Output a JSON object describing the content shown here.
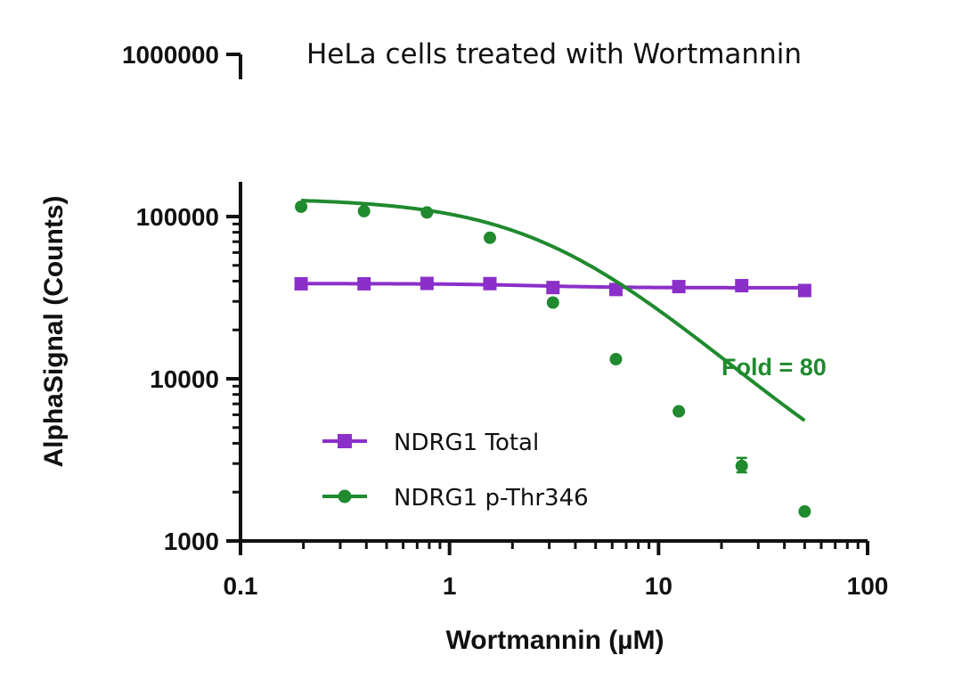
{
  "chart_data": {
    "type": "scatter",
    "title": "HeLa cells treated with Wortmannin",
    "xlabel": "Wortmannin (µM)",
    "ylabel": "AlphaSignal (Counts)",
    "x_scale": "log",
    "y_scale": "log",
    "xlim": [
      0.1,
      100
    ],
    "ylim": [
      1000,
      1000000
    ],
    "x_ticks": [
      {
        "value": 0.1,
        "label": "0.1"
      },
      {
        "value": 1,
        "label": "1"
      },
      {
        "value": 10,
        "label": "10"
      },
      {
        "value": 100,
        "label": "100"
      }
    ],
    "y_ticks": [
      {
        "value": 1000,
        "label": "1000"
      },
      {
        "value": 10000,
        "label": "10000"
      },
      {
        "value": 100000,
        "label": "100000"
      },
      {
        "value": 1000000,
        "label": "1000000"
      }
    ],
    "legend_position": "bottom-left",
    "series": [
      {
        "name": "NDRG1 Total",
        "color": "#8B2FC9",
        "marker": "square",
        "x": [
          0.195,
          0.39,
          0.78,
          1.56,
          3.125,
          6.25,
          12.5,
          25,
          50
        ],
        "y": [
          38500,
          38500,
          38700,
          38600,
          36500,
          35500,
          37000,
          37500,
          35000
        ],
        "fit": {
          "top": 38600,
          "bottom": 36400,
          "ec50": 2.5,
          "hill": 2.0
        }
      },
      {
        "name": "NDRG1 p-Thr346",
        "color": "#1F8A2E",
        "marker": "circle",
        "x": [
          0.195,
          0.39,
          0.78,
          1.56,
          3.125,
          6.25,
          12.5,
          25,
          50
        ],
        "y": [
          115000,
          108000,
          106000,
          74000,
          29500,
          13200,
          6300,
          2900,
          1520
        ],
        "error_bars": [
          {
            "x": 25,
            "low": 2650,
            "high": 3250
          }
        ],
        "fit": {
          "top": 130000,
          "bottom": 1100,
          "ec50": 3.1,
          "hill": 1.2
        }
      }
    ],
    "annotations": [
      {
        "text": "Fold = 80",
        "color": "#1F8A2E",
        "x": 20,
        "y": 10500
      }
    ]
  }
}
